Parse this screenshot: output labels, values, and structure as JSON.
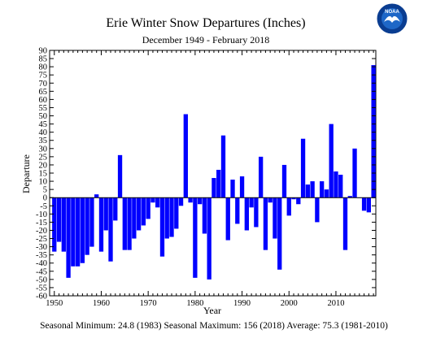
{
  "colors": {
    "bar": "#0000ff",
    "axis": "#000000",
    "background": "#ffffff"
  },
  "logo": {
    "text": "NOAA",
    "icon": "noaa-logo-icon",
    "colors": {
      "ring": "#0a3d91",
      "sky": "#1e67c7",
      "gull": "#ffffff"
    }
  },
  "chart_data": {
    "type": "bar",
    "title": "Erie Winter Snow Departures (Inches)",
    "subtitle": "December 1949 - February 2018",
    "xlabel": "Year",
    "ylabel": "Departure",
    "xlim": [
      1949,
      2018.5
    ],
    "ylim": [
      -60,
      90
    ],
    "xticks": [
      1950,
      1960,
      1970,
      1980,
      1990,
      2000,
      2010
    ],
    "yticks": [
      -60,
      -55,
      -50,
      -45,
      -40,
      -35,
      -30,
      -25,
      -20,
      -15,
      -10,
      -5,
      0,
      5,
      10,
      15,
      20,
      25,
      30,
      35,
      40,
      45,
      50,
      55,
      60,
      65,
      70,
      75,
      80,
      85,
      90
    ],
    "grid": false,
    "x": [
      1950,
      1951,
      1952,
      1953,
      1954,
      1955,
      1956,
      1957,
      1958,
      1959,
      1960,
      1961,
      1962,
      1963,
      1964,
      1965,
      1966,
      1967,
      1968,
      1969,
      1970,
      1971,
      1972,
      1973,
      1974,
      1975,
      1976,
      1977,
      1978,
      1979,
      1980,
      1981,
      1982,
      1983,
      1984,
      1985,
      1986,
      1987,
      1988,
      1989,
      1990,
      1991,
      1992,
      1993,
      1994,
      1995,
      1996,
      1997,
      1998,
      1999,
      2000,
      2001,
      2002,
      2003,
      2004,
      2005,
      2006,
      2007,
      2008,
      2009,
      2010,
      2011,
      2012,
      2013,
      2014,
      2015,
      2016,
      2017,
      2018
    ],
    "values": [
      -33,
      -27,
      -33,
      -49,
      -42,
      -42,
      -40,
      -35,
      -30,
      2,
      -33,
      -20,
      -39,
      -14,
      26,
      -32,
      -32,
      -25,
      -20,
      -17,
      -13,
      -3,
      -6,
      -36,
      -25,
      -24,
      -19,
      -5,
      51,
      -3,
      -49,
      -4,
      -22,
      -50,
      12,
      17,
      38,
      -26,
      11,
      -16,
      13,
      -20,
      -6,
      -18,
      25,
      -32,
      -3,
      -25,
      -44,
      20,
      -11,
      -1,
      -4,
      36,
      8,
      10,
      -15,
      10,
      5,
      45,
      16,
      14,
      -32,
      1,
      30,
      0,
      -8,
      -9,
      81
    ],
    "footer": "Seasonal Minimum: 24.8 (1983) Seasonal Maximum: 156 (2018) Average: 75.3 (1981-2010)"
  }
}
